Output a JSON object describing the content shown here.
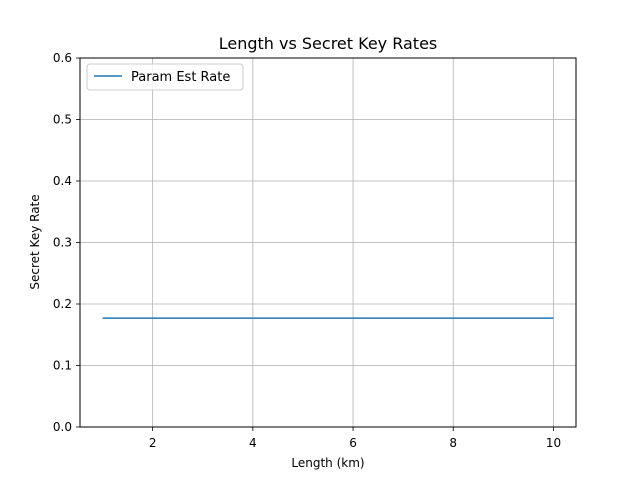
{
  "chart_data": {
    "type": "line",
    "title": "Length vs Secret Key Rates",
    "xlabel": "Length (km)",
    "ylabel": "Secret Key Rate",
    "xlim": [
      0.55,
      10.45
    ],
    "ylim": [
      0,
      0.6
    ],
    "xticks": [
      2,
      4,
      6,
      8,
      10
    ],
    "xtick_labels": [
      "2",
      "4",
      "6",
      "8",
      "10"
    ],
    "yticks": [
      0.0,
      0.1,
      0.2,
      0.3,
      0.4,
      0.5,
      0.6
    ],
    "ytick_labels": [
      "0.0",
      "0.1",
      "0.2",
      "0.3",
      "0.4",
      "0.5",
      "0.6"
    ],
    "grid": true,
    "legend_position": "upper-left",
    "series": [
      {
        "name": "Param Est Rate",
        "color": "#1f77b4",
        "x": [
          1,
          2,
          3,
          4,
          5,
          6,
          7,
          8,
          9,
          10
        ],
        "y": [
          0.177,
          0.177,
          0.177,
          0.177,
          0.177,
          0.177,
          0.177,
          0.177,
          0.177,
          0.177
        ]
      }
    ]
  }
}
